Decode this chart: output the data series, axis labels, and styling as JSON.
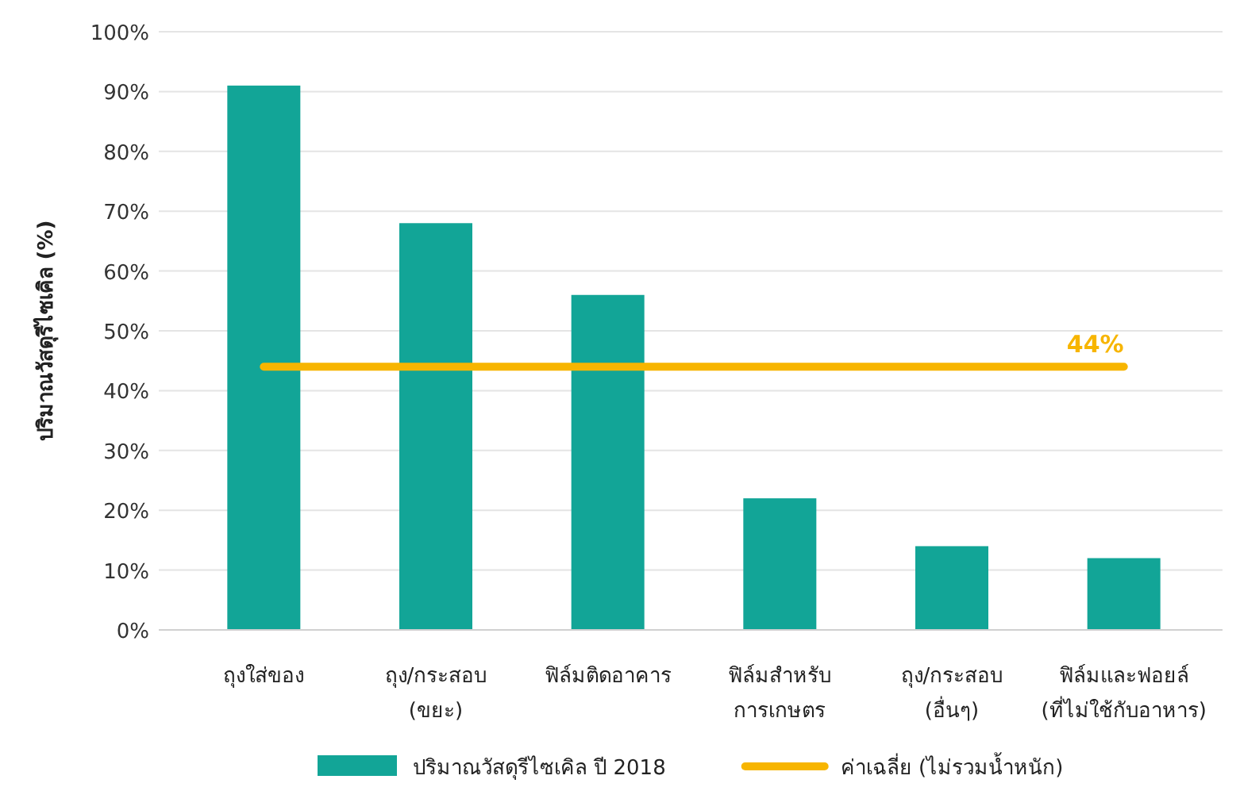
{
  "chart_data": {
    "type": "bar",
    "categories": [
      "ถุงใส่ของ",
      "ถุง/กระสอบ\n(ขยะ)",
      "ฟิล์มติดอาคาร",
      "ฟิล์มสำหรับ\nการเกษตร",
      "ถุง/กระสอบ\n(อื่นๆ)",
      "ฟิล์มและฟอยล์\n(ที่ไม่ใช้กับอาหาร)"
    ],
    "series": [
      {
        "name": "ปริมาณวัสดุรีไซเคิล ปี 2018",
        "color": "#12a597",
        "values": [
          91,
          68,
          56,
          22,
          14,
          12
        ]
      }
    ],
    "ylabel": "ปริมาณวัสดุรีไซเคิล (%)",
    "ylim": [
      0,
      100
    ],
    "yticks": [
      {
        "value": 0,
        "label": "0%"
      },
      {
        "value": 10,
        "label": "10%"
      },
      {
        "value": 20,
        "label": "20%"
      },
      {
        "value": 30,
        "label": "30%"
      },
      {
        "value": 40,
        "label": "40%"
      },
      {
        "value": 50,
        "label": "50%"
      },
      {
        "value": 60,
        "label": "60%"
      },
      {
        "value": 70,
        "label": "70%"
      },
      {
        "value": 80,
        "label": "80%"
      },
      {
        "value": 90,
        "label": "90%"
      },
      {
        "value": 100,
        "label": "100%"
      }
    ],
    "ref_lines": [
      {
        "axis": "y",
        "value": 44,
        "label": "ค่าเฉลี่ย (ไม่รวมน้ำหนัก)",
        "color": "#f7b500",
        "line_style": "solid"
      }
    ],
    "annotations": [
      {
        "text": "44%",
        "x": "ฟิล์มและฟอยล์\n(ที่ไม่ใช้กับอาหาร)",
        "y": 44
      }
    ],
    "grid": "y",
    "legend": "bottom"
  }
}
